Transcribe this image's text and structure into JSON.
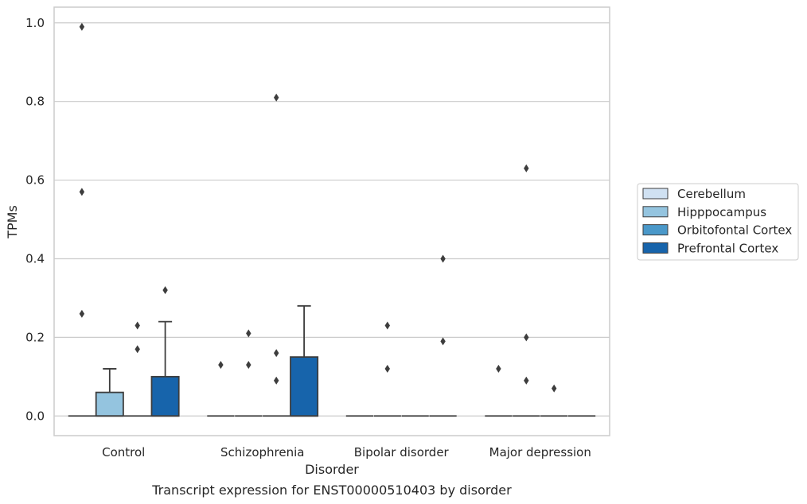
{
  "caption": "Transcript expression for ENST00000510403 by disorder",
  "chart_data": {
    "type": "box",
    "title": "",
    "xlabel": "Disorder",
    "ylabel": "TPMs",
    "ylim": [
      -0.05,
      1.04
    ],
    "yticks": [
      0.0,
      0.2,
      0.4,
      0.6,
      0.8,
      1.0
    ],
    "ytick_labels": [
      "0.0",
      "0.2",
      "0.4",
      "0.6",
      "0.8",
      "1.0"
    ],
    "grid": true,
    "legend_placement": "right",
    "categories": [
      "Control",
      "Schizophrenia",
      "Bipolar disorder",
      "Major depression"
    ],
    "series": [
      {
        "name": "Cerebellum",
        "color": "#d0e1f2",
        "boxes": [
          {
            "q1": 0,
            "median": 0,
            "q3": 0,
            "whisker_low": 0,
            "whisker_high": 0,
            "outliers": [
              0.26,
              0.57,
              0.99
            ]
          },
          {
            "q1": 0,
            "median": 0,
            "q3": 0,
            "whisker_low": 0,
            "whisker_high": 0,
            "outliers": [
              0.13
            ]
          },
          {
            "q1": 0,
            "median": 0,
            "q3": 0,
            "whisker_low": 0,
            "whisker_high": 0,
            "outliers": []
          },
          {
            "q1": 0,
            "median": 0,
            "q3": 0,
            "whisker_low": 0,
            "whisker_high": 0,
            "outliers": [
              0.12
            ]
          }
        ]
      },
      {
        "name": "Hipppocampus",
        "color": "#94c4df",
        "boxes": [
          {
            "q1": 0,
            "median": 0,
            "q3": 0.06,
            "whisker_low": 0,
            "whisker_high": 0.12,
            "outliers": []
          },
          {
            "q1": 0,
            "median": 0,
            "q3": 0,
            "whisker_low": 0,
            "whisker_high": 0,
            "outliers": [
              0.13,
              0.21
            ]
          },
          {
            "q1": 0,
            "median": 0,
            "q3": 0,
            "whisker_low": 0,
            "whisker_high": 0,
            "outliers": [
              0.12,
              0.23
            ]
          },
          {
            "q1": 0,
            "median": 0,
            "q3": 0,
            "whisker_low": 0,
            "whisker_high": 0,
            "outliers": [
              0.2,
              0.09,
              0.63
            ]
          }
        ]
      },
      {
        "name": "Orbitofontal Cortex",
        "color": "#4a98c9",
        "boxes": [
          {
            "q1": 0,
            "median": 0,
            "q3": 0,
            "whisker_low": 0,
            "whisker_high": 0,
            "outliers": [
              0.17,
              0.23
            ]
          },
          {
            "q1": 0,
            "median": 0,
            "q3": 0,
            "whisker_low": 0,
            "whisker_high": 0,
            "outliers": [
              0.09,
              0.16,
              0.81
            ]
          },
          {
            "q1": 0,
            "median": 0,
            "q3": 0,
            "whisker_low": 0,
            "whisker_high": 0,
            "outliers": []
          },
          {
            "q1": 0,
            "median": 0,
            "q3": 0,
            "whisker_low": 0,
            "whisker_high": 0,
            "outliers": [
              0.07
            ]
          }
        ]
      },
      {
        "name": "Prefrontal Cortex",
        "color": "#1764ab",
        "boxes": [
          {
            "q1": 0,
            "median": 0,
            "q3": 0.1,
            "whisker_low": 0,
            "whisker_high": 0.24,
            "outliers": [
              0.32
            ]
          },
          {
            "q1": 0,
            "median": 0,
            "q3": 0.15,
            "whisker_low": 0,
            "whisker_high": 0.28,
            "outliers": []
          },
          {
            "q1": 0,
            "median": 0,
            "q3": 0,
            "whisker_low": 0,
            "whisker_high": 0,
            "outliers": [
              0.4,
              0.19
            ]
          },
          {
            "q1": 0,
            "median": 0,
            "q3": 0,
            "whisker_low": 0,
            "whisker_high": 0,
            "outliers": []
          }
        ]
      }
    ]
  }
}
